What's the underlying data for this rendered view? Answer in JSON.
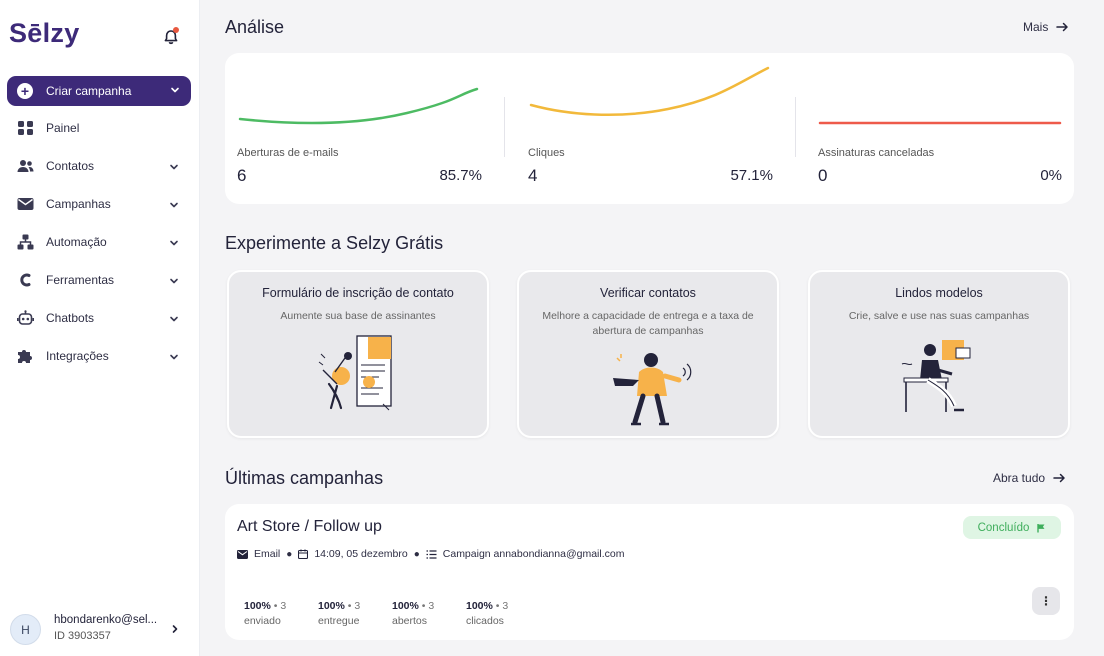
{
  "brand": {
    "logo": "Sēlzy"
  },
  "sidebar": {
    "create_label": "Criar campanha",
    "items": [
      {
        "label": "Painel",
        "icon": "grid-icon"
      },
      {
        "label": "Contatos",
        "icon": "users-icon"
      },
      {
        "label": "Campanhas",
        "icon": "mail-icon"
      },
      {
        "label": "Automação",
        "icon": "hierarchy-icon"
      },
      {
        "label": "Ferramentas",
        "icon": "tools-icon"
      },
      {
        "label": "Chatbots",
        "icon": "robot-icon"
      },
      {
        "label": "Integrações",
        "icon": "puzzle-icon"
      }
    ],
    "user": {
      "initial": "H",
      "name": "hbondarenko@sel...",
      "id": "ID 3903357"
    }
  },
  "analytics": {
    "title": "Análise",
    "more_label": "Mais",
    "metrics": [
      {
        "label": "Aberturas de e-mails",
        "value": "6",
        "percent": "85.7%",
        "color": "#4dbb63"
      },
      {
        "label": "Cliques",
        "value": "4",
        "percent": "57.1%",
        "color": "#f2b93b"
      },
      {
        "label": "Assinaturas canceladas",
        "value": "0",
        "percent": "0%",
        "color": "#ee5a4a"
      }
    ]
  },
  "promo": {
    "title": "Experimente a Selzy Grátis",
    "cards": [
      {
        "title": "Formulário de inscrição de contato",
        "subtitle": "Aumente sua base de assinantes"
      },
      {
        "title": "Verificar contatos",
        "subtitle": "Melhore a capacidade de entrega e a taxa de abertura de campanhas"
      },
      {
        "title": "Lindos modelos",
        "subtitle": "Crie, salve e use nas suas campanhas"
      }
    ]
  },
  "campaigns": {
    "title": "Últimas campanhas",
    "open_all_label": "Abra tudo",
    "items": [
      {
        "name": "Art Store / Follow up",
        "status": "Concluído",
        "channel": "Email",
        "datetime": "14:09, 05 dezembro",
        "sender": "Campaign annabondianna@gmail.com",
        "stats": [
          {
            "percent": "100%",
            "count": "3",
            "label": "enviado"
          },
          {
            "percent": "100%",
            "count": "3",
            "label": "entregue"
          },
          {
            "percent": "100%",
            "count": "3",
            "label": "abertos"
          },
          {
            "percent": "100%",
            "count": "3",
            "label": "clicados"
          }
        ]
      }
    ]
  }
}
